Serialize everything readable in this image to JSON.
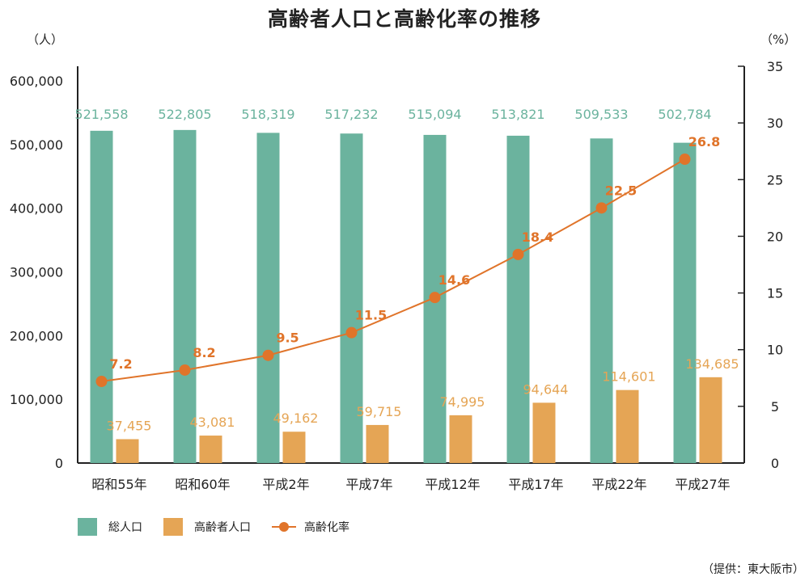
{
  "title": "高齢者人口と高齢化率の推移",
  "unit_left": "（人）",
  "unit_right": "（%）",
  "source": "（提供：東大阪市）",
  "colors": {
    "total": "#6bb39e",
    "elderly": "#e5a555",
    "rate": "#e0742a"
  },
  "legend": {
    "total": "総人口",
    "elderly": "高齢者人口",
    "rate": "高齢化率"
  },
  "chart_data": {
    "type": "bar",
    "title": "高齢者人口と高齢化率の推移",
    "categories": [
      "昭和55年",
      "昭和60年",
      "平成2年",
      "平成7年",
      "平成12年",
      "平成17年",
      "平成22年",
      "平成27年"
    ],
    "series": [
      {
        "name": "総人口",
        "type": "bar",
        "axis": "left",
        "values": [
          521558,
          522805,
          518319,
          517232,
          515094,
          513821,
          509533,
          502784
        ],
        "labels": [
          "521,558",
          "522,805",
          "518,319",
          "517,232",
          "515,094",
          "513,821",
          "509,533",
          "502,784"
        ]
      },
      {
        "name": "高齢者人口",
        "type": "bar",
        "axis": "left",
        "values": [
          37455,
          43081,
          49162,
          59715,
          74995,
          94644,
          114601,
          134685
        ],
        "labels": [
          "37,455",
          "43,081",
          "49,162",
          "59,715",
          "74,995",
          "94,644",
          "114,601",
          "134,685"
        ]
      },
      {
        "name": "高齢化率",
        "type": "line",
        "axis": "right",
        "values": [
          7.2,
          8.2,
          9.5,
          11.5,
          14.6,
          18.4,
          22.5,
          26.8
        ],
        "labels": [
          "7.2",
          "8.2",
          "9.5",
          "11.5",
          "14.6",
          "18.4",
          "22.5",
          "26.8"
        ]
      }
    ],
    "y_left": {
      "range": [
        0,
        600000
      ],
      "ticks": [
        "0",
        "100,000",
        "200,000",
        "300,000",
        "400,000",
        "500,000",
        "600,000"
      ]
    },
    "y_right": {
      "range": [
        0,
        35
      ],
      "ticks": [
        "0",
        "5",
        "10",
        "15",
        "20",
        "25",
        "30",
        "35"
      ]
    },
    "grid": false,
    "legend_position": "bottom-left"
  }
}
